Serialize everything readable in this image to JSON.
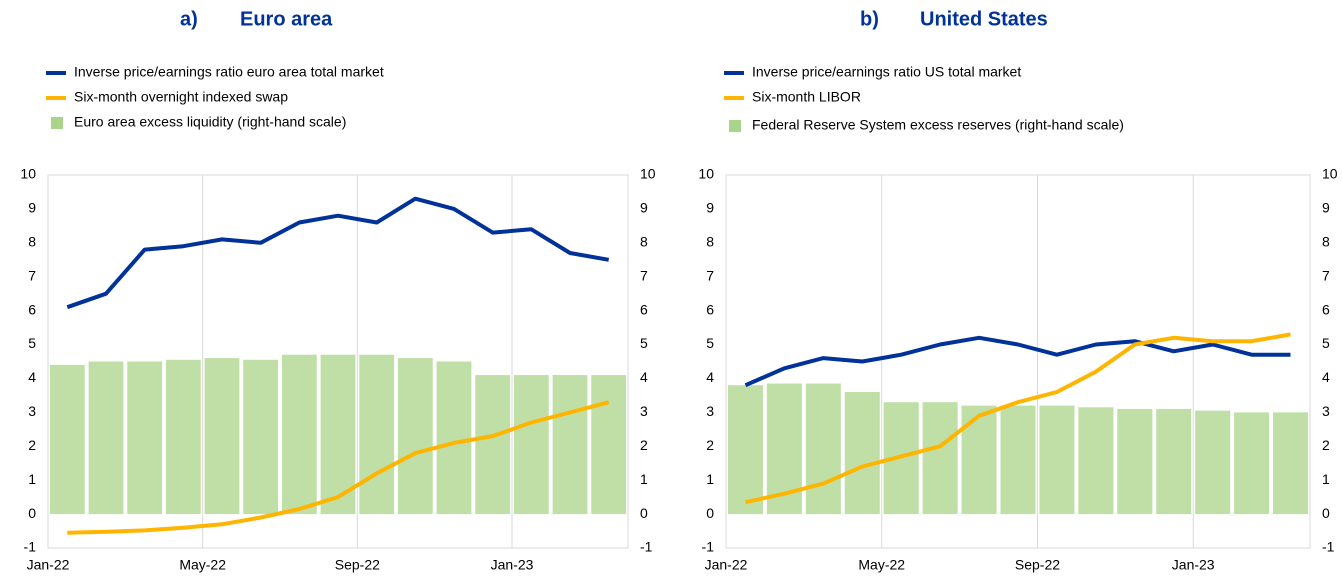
{
  "chart_data": [
    {
      "type": "combo",
      "label": "a)",
      "title": "Euro area",
      "x": [
        "Jan-22",
        null,
        null,
        null,
        "May-22",
        null,
        null,
        null,
        "Sep-22",
        null,
        null,
        null,
        "Jan-23",
        null,
        null
      ],
      "series": [
        {
          "name": "Inverse price/earnings ratio euro area total market",
          "kind": "line",
          "color": "#003299",
          "values": [
            6.1,
            6.5,
            7.8,
            7.9,
            8.1,
            8.0,
            8.6,
            8.8,
            8.6,
            9.3,
            9.0,
            8.3,
            8.4,
            7.7,
            7.5
          ]
        },
        {
          "name": "Six-month overnight indexed swap",
          "kind": "line",
          "color": "#ffb400",
          "values": [
            -0.55,
            -0.52,
            -0.48,
            -0.4,
            -0.3,
            -0.1,
            0.15,
            0.5,
            1.2,
            1.8,
            2.1,
            2.3,
            2.7,
            3.0,
            3.3
          ]
        },
        {
          "name": "Euro area excess liquidity (right-hand scale)",
          "kind": "bar",
          "axis": "y2",
          "color": "#a9d48a",
          "values": [
            4.4,
            4.5,
            4.5,
            4.55,
            4.6,
            4.55,
            4.7,
            4.7,
            4.7,
            4.6,
            4.5,
            4.1,
            4.1,
            4.1,
            4.1
          ]
        }
      ],
      "ylim": [
        -1,
        10
      ],
      "yticks": [
        -1,
        0,
        1,
        2,
        3,
        4,
        5,
        6,
        7,
        8,
        9,
        10
      ],
      "y2lim": [
        -1,
        10
      ],
      "y2ticks": [
        -1,
        0,
        1,
        2,
        3,
        4,
        5,
        6,
        7,
        8,
        9,
        10
      ],
      "grid": "x"
    },
    {
      "type": "combo",
      "label": "b)",
      "title": "United States",
      "x": [
        "Jan-22",
        null,
        null,
        null,
        "May-22",
        null,
        null,
        null,
        "Sep-22",
        null,
        null,
        null,
        "Jan-23",
        null,
        null
      ],
      "series": [
        {
          "name": "Inverse price/earnings ratio US total market",
          "kind": "line",
          "color": "#003299",
          "values": [
            3.8,
            4.3,
            4.6,
            4.5,
            4.7,
            5.0,
            5.2,
            5.0,
            4.7,
            5.0,
            5.1,
            4.8,
            5.0,
            4.7,
            4.7
          ]
        },
        {
          "name": "Six-month LIBOR",
          "kind": "line",
          "color": "#ffb400",
          "values": [
            0.35,
            0.6,
            0.9,
            1.4,
            1.7,
            2.0,
            2.9,
            3.3,
            3.6,
            4.2,
            5.0,
            5.2,
            5.1,
            5.1,
            5.3
          ]
        },
        {
          "name": "Federal Reserve System excess reserves (right-hand scale)",
          "kind": "bar",
          "axis": "y2",
          "color": "#a9d48a",
          "values": [
            3.8,
            3.85,
            3.85,
            3.6,
            3.3,
            3.3,
            3.2,
            3.2,
            3.2,
            3.15,
            3.1,
            3.1,
            3.05,
            3.0,
            3.0
          ]
        }
      ],
      "ylim": [
        -1,
        10
      ],
      "yticks": [
        -1,
        0,
        1,
        2,
        3,
        4,
        5,
        6,
        7,
        8,
        9,
        10
      ],
      "y2lim": [
        -1,
        10
      ],
      "y2ticks": [
        -1,
        0,
        1,
        2,
        3,
        4,
        5,
        6,
        7,
        8,
        9,
        10
      ],
      "grid": "x"
    }
  ]
}
